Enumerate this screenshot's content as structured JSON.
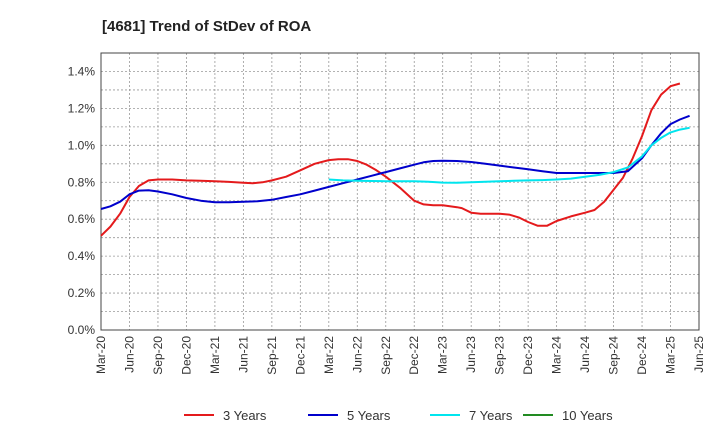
{
  "chart_data": {
    "type": "line",
    "title": "[4681]  Trend of StDev of ROA",
    "xlabel": "",
    "ylabel": "",
    "x_ticks": [
      "Mar-20",
      "Jun-20",
      "Sep-20",
      "Dec-20",
      "Mar-21",
      "Jun-21",
      "Sep-21",
      "Dec-21",
      "Mar-22",
      "Jun-22",
      "Sep-22",
      "Dec-22",
      "Mar-23",
      "Jun-23",
      "Sep-23",
      "Dec-23",
      "Mar-24",
      "Jun-24",
      "Sep-24",
      "Dec-24",
      "Mar-25",
      "Jun-25"
    ],
    "y_ticks": [
      "0.0%",
      "0.2%",
      "0.4%",
      "0.6%",
      "0.8%",
      "1.0%",
      "1.2%",
      "1.4%"
    ],
    "ylim": [
      0,
      1.5
    ],
    "grid": true,
    "legend_position": "bottom",
    "series": [
      {
        "name": "3 Years",
        "color": "#e41a1c",
        "values": [
          [
            0,
            0.51
          ],
          [
            0.33,
            0.56
          ],
          [
            0.67,
            0.63
          ],
          [
            1,
            0.72
          ],
          [
            1.33,
            0.78
          ],
          [
            1.67,
            0.81
          ],
          [
            2,
            0.815
          ],
          [
            2.5,
            0.815
          ],
          [
            3,
            0.81
          ],
          [
            3.5,
            0.808
          ],
          [
            4,
            0.805
          ],
          [
            4.5,
            0.802
          ],
          [
            5,
            0.797
          ],
          [
            5.33,
            0.795
          ],
          [
            5.67,
            0.8
          ],
          [
            6,
            0.81
          ],
          [
            6.5,
            0.83
          ],
          [
            7,
            0.865
          ],
          [
            7.5,
            0.9
          ],
          [
            8,
            0.92
          ],
          [
            8.33,
            0.925
          ],
          [
            8.67,
            0.925
          ],
          [
            9,
            0.915
          ],
          [
            9.33,
            0.895
          ],
          [
            9.67,
            0.865
          ],
          [
            10,
            0.83
          ],
          [
            10.5,
            0.77
          ],
          [
            11,
            0.7
          ],
          [
            11.33,
            0.68
          ],
          [
            11.67,
            0.675
          ],
          [
            12,
            0.675
          ],
          [
            12.5,
            0.665
          ],
          [
            12.67,
            0.66
          ],
          [
            13,
            0.635
          ],
          [
            13.33,
            0.63
          ],
          [
            14,
            0.63
          ],
          [
            14.33,
            0.625
          ],
          [
            14.67,
            0.61
          ],
          [
            15,
            0.585
          ],
          [
            15.33,
            0.565
          ],
          [
            15.67,
            0.565
          ],
          [
            16,
            0.59
          ],
          [
            16.5,
            0.615
          ],
          [
            17,
            0.635
          ],
          [
            17.33,
            0.65
          ],
          [
            17.67,
            0.695
          ],
          [
            18,
            0.76
          ],
          [
            18.33,
            0.825
          ],
          [
            18.67,
            0.93
          ],
          [
            19,
            1.05
          ],
          [
            19.33,
            1.19
          ],
          [
            19.67,
            1.275
          ],
          [
            20,
            1.32
          ],
          [
            20.33,
            1.335
          ]
        ]
      },
      {
        "name": "5 Years",
        "color": "#0000cc",
        "values": [
          [
            0,
            0.655
          ],
          [
            0.33,
            0.67
          ],
          [
            0.67,
            0.695
          ],
          [
            1,
            0.735
          ],
          [
            1.33,
            0.755
          ],
          [
            1.67,
            0.757
          ],
          [
            2,
            0.75
          ],
          [
            2.5,
            0.735
          ],
          [
            3,
            0.715
          ],
          [
            3.5,
            0.7
          ],
          [
            4,
            0.692
          ],
          [
            4.5,
            0.692
          ],
          [
            5,
            0.695
          ],
          [
            5.5,
            0.697
          ],
          [
            6,
            0.705
          ],
          [
            6.5,
            0.72
          ],
          [
            7,
            0.735
          ],
          [
            7.5,
            0.755
          ],
          [
            8,
            0.775
          ],
          [
            8.5,
            0.795
          ],
          [
            9,
            0.815
          ],
          [
            9.5,
            0.835
          ],
          [
            10,
            0.855
          ],
          [
            10.5,
            0.875
          ],
          [
            11,
            0.895
          ],
          [
            11.33,
            0.908
          ],
          [
            11.67,
            0.915
          ],
          [
            12,
            0.917
          ],
          [
            12.5,
            0.915
          ],
          [
            13,
            0.91
          ],
          [
            13.5,
            0.9
          ],
          [
            14,
            0.89
          ],
          [
            14.5,
            0.88
          ],
          [
            15,
            0.87
          ],
          [
            15.5,
            0.86
          ],
          [
            16,
            0.85
          ],
          [
            16.5,
            0.85
          ],
          [
            17,
            0.85
          ],
          [
            17.5,
            0.85
          ],
          [
            18,
            0.85
          ],
          [
            18.5,
            0.86
          ],
          [
            19,
            0.93
          ],
          [
            19.33,
            1.0
          ],
          [
            19.67,
            1.065
          ],
          [
            20,
            1.115
          ],
          [
            20.33,
            1.14
          ],
          [
            20.67,
            1.16
          ]
        ]
      },
      {
        "name": "7 Years",
        "color": "#00e5ee",
        "values": [
          [
            8,
            0.815
          ],
          [
            8.5,
            0.81
          ],
          [
            9,
            0.808
          ],
          [
            9.5,
            0.807
          ],
          [
            10,
            0.806
          ],
          [
            10.5,
            0.805
          ],
          [
            11,
            0.805
          ],
          [
            11.5,
            0.803
          ],
          [
            12,
            0.798
          ],
          [
            12.5,
            0.797
          ],
          [
            13,
            0.8
          ],
          [
            13.5,
            0.803
          ],
          [
            14,
            0.806
          ],
          [
            14.5,
            0.808
          ],
          [
            15,
            0.81
          ],
          [
            15.5,
            0.812
          ],
          [
            16,
            0.815
          ],
          [
            16.5,
            0.82
          ],
          [
            17,
            0.83
          ],
          [
            17.5,
            0.84
          ],
          [
            18,
            0.855
          ],
          [
            18.5,
            0.88
          ],
          [
            19,
            0.94
          ],
          [
            19.33,
            1.0
          ],
          [
            19.67,
            1.04
          ],
          [
            20,
            1.07
          ],
          [
            20.33,
            1.085
          ],
          [
            20.67,
            1.095
          ]
        ]
      },
      {
        "name": "10 Years",
        "color": "#228b22",
        "values": []
      }
    ]
  }
}
